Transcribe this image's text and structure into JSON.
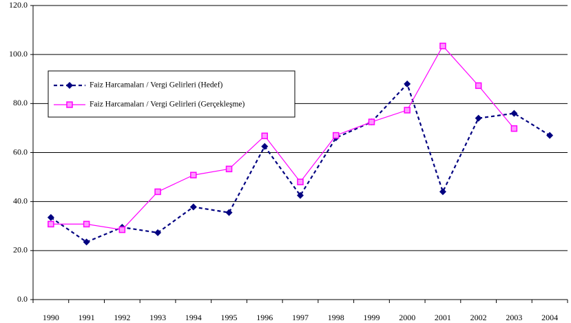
{
  "chart_data": {
    "type": "line",
    "categories": [
      "1990",
      "1991",
      "1992",
      "1993",
      "1994",
      "1995",
      "1996",
      "1997",
      "1998",
      "1999",
      "2000",
      "2001",
      "2002",
      "2003",
      "2004"
    ],
    "series": [
      {
        "name": "Faiz Harcamaları / Vergi Gelirleri (Hedef)",
        "color": "#000080",
        "line_style": "dashed",
        "marker": "diamond",
        "values": [
          33.5,
          23.5,
          29.5,
          27.3,
          37.8,
          35.5,
          62.5,
          42.5,
          66.0,
          72.5,
          88.0,
          44.0,
          74.0,
          76.0,
          67.0
        ]
      },
      {
        "name": "Faiz Harcamaları / Vergi Gelirleri (Gerçekleşme)",
        "color": "#ff00ff",
        "line_style": "solid",
        "marker": "square",
        "values": [
          30.8,
          30.8,
          28.5,
          44.0,
          50.8,
          53.3,
          66.8,
          48.0,
          67.0,
          72.5,
          77.3,
          103.5,
          87.3,
          69.8,
          null
        ]
      }
    ],
    "ylim": [
      0,
      120
    ],
    "yticks": [
      {
        "value": 0,
        "label": "0.0"
      },
      {
        "value": 20,
        "label": "20.0"
      },
      {
        "value": 40,
        "label": "40.0"
      },
      {
        "value": 60,
        "label": "60.0"
      },
      {
        "value": 80,
        "label": "80.0"
      },
      {
        "value": 100,
        "label": "100.0"
      },
      {
        "value": 120,
        "label": "120.0"
      }
    ],
    "grid": true
  }
}
